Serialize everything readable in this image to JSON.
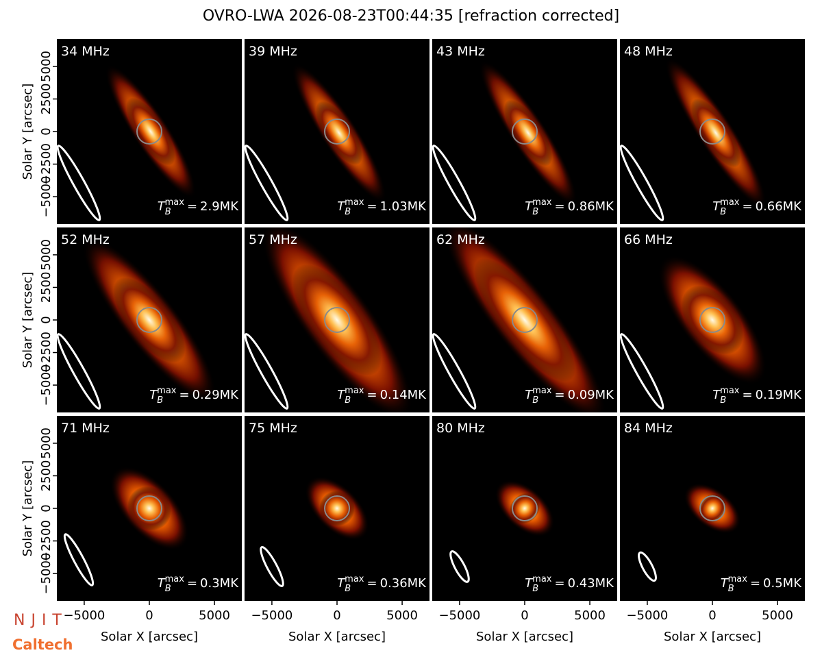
{
  "chart_data": {
    "type": "image-grid",
    "title": "OVRO-LWA 2026-08-23T00:44:35 [refraction corrected]",
    "xlabel": "Solar X [arcsec]",
    "ylabel": "Solar Y [arcsec]",
    "xlim": [
      -7100,
      7100
    ],
    "ylim": [
      -7100,
      7100
    ],
    "xticks": [
      {
        "value": -5000,
        "label": "−5000"
      },
      0,
      5000
    ],
    "yticks": [
      {
        "value": -5000,
        "label": "−5000"
      },
      {
        "value": -2500,
        "label": "−2500"
      },
      0,
      2500,
      5000
    ],
    "tb_symbol": "T",
    "tb_sub": "B",
    "tb_sup": "max",
    "tb_eq": "=",
    "panels": [
      {
        "label": "34 MHz",
        "tb_max": "2.9MK"
      },
      {
        "label": "39 MHz",
        "tb_max": "1.03MK"
      },
      {
        "label": "43 MHz",
        "tb_max": "0.86MK"
      },
      {
        "label": "48 MHz",
        "tb_max": "0.66MK"
      },
      {
        "label": "52 MHz",
        "tb_max": "0.29MK"
      },
      {
        "label": "57 MHz",
        "tb_max": "0.14MK"
      },
      {
        "label": "62 MHz",
        "tb_max": "0.09MK"
      },
      {
        "label": "66 MHz",
        "tb_max": "0.19MK"
      },
      {
        "label": "71 MHz",
        "tb_max": "0.3MK"
      },
      {
        "label": "75 MHz",
        "tb_max": "0.36MK"
      },
      {
        "label": "80 MHz",
        "tb_max": "0.43MK"
      },
      {
        "label": "84 MHz",
        "tb_max": "0.5MK"
      }
    ],
    "logos": [
      "NJIT",
      "Caltech"
    ]
  }
}
